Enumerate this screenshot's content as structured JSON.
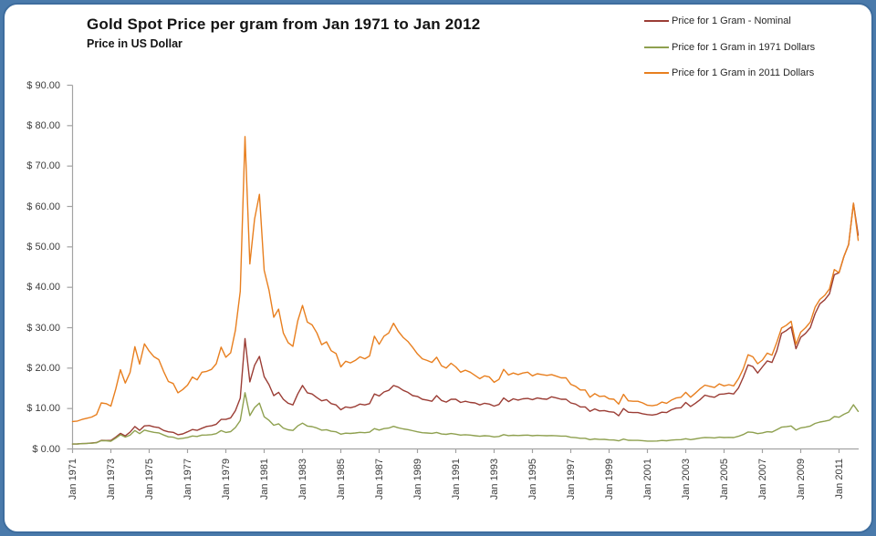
{
  "header": {
    "title": "Gold Spot Price per gram from Jan 1971 to Jan 2012",
    "subtitle": "Price in US Dollar"
  },
  "frame": {
    "background": "#ffffff",
    "border_color": "#3e6d9e",
    "page_color": "#4a7aab"
  },
  "axes": {
    "line_color": "#a3a3a3",
    "label_color": "#3d3d3d"
  },
  "chart_data": {
    "type": "line",
    "title": "Gold Spot Price per gram from Jan 1971 to Jan 2012",
    "subtitle": "Price in US Dollar",
    "xlabel": "",
    "ylabel": "Price in US Dollar",
    "grid": false,
    "legend_position": "top-right",
    "xlim": [
      1971,
      2012
    ],
    "ylim": [
      0,
      90
    ],
    "y_ticks": [
      0,
      10,
      20,
      30,
      40,
      50,
      60,
      70,
      80,
      90
    ],
    "y_tick_labels": [
      "$ 0.00",
      "$ 10.00",
      "$ 20.00",
      "$ 30.00",
      "$ 40.00",
      "$ 50.00",
      "$ 60.00",
      "$ 70.00",
      "$ 80.00",
      "$ 90.00"
    ],
    "x_tick_years": [
      1971,
      1973,
      1975,
      1977,
      1979,
      1981,
      1983,
      1985,
      1987,
      1989,
      1991,
      1993,
      1995,
      1997,
      1999,
      2001,
      2003,
      2005,
      2007,
      2009,
      2011
    ],
    "x_tick_labels": [
      "Jan 1971",
      "Jan 1973",
      "Jan 1975",
      "Jan 1977",
      "Jan 1979",
      "Jan 1981",
      "Jan 1983",
      "Jan 1985",
      "Jan 1987",
      "Jan 1989",
      "Jan 1991",
      "Jan 1993",
      "Jan 1995",
      "Jan 1997",
      "Jan 1999",
      "Jan 2001",
      "Jan 2003",
      "Jan 2005",
      "Jan 2007",
      "Jan 2009",
      "Jan 2011"
    ],
    "x_start_year": 1971.0,
    "x_step_years": 0.25,
    "sampling_note": "quarterly samples, Jan 1971 - Jan 2012",
    "series": [
      {
        "name": "Price for 1 Gram - Nominal",
        "color": "#9b3d35",
        "values": [
          1.22,
          1.25,
          1.32,
          1.37,
          1.47,
          1.58,
          2.11,
          2.09,
          2.09,
          2.91,
          3.86,
          3.22,
          4.15,
          5.54,
          4.6,
          5.7,
          5.79,
          5.45,
          5.28,
          4.59,
          4.23,
          4.11,
          3.53,
          3.73,
          4.25,
          4.8,
          4.61,
          5.11,
          5.57,
          5.72,
          6.11,
          7.31,
          7.31,
          7.69,
          9.48,
          12.59,
          27.3,
          16.6,
          20.7,
          22.9,
          17.9,
          15.9,
          13.2,
          14.0,
          12.3,
          11.3,
          10.9,
          13.6,
          15.7,
          13.9,
          13.6,
          12.7,
          11.9,
          12.2,
          11.2,
          10.9,
          9.7,
          10.4,
          10.2,
          10.5,
          11.1,
          10.9,
          11.2,
          13.6,
          13.1,
          14.1,
          14.5,
          15.7,
          15.3,
          14.5,
          14.0,
          13.2,
          13.0,
          12.3,
          12.1,
          11.8,
          13.2,
          12.0,
          11.6,
          12.3,
          12.3,
          11.5,
          11.8,
          11.5,
          11.4,
          10.9,
          11.3,
          11.1,
          10.6,
          11.0,
          12.6,
          11.7,
          12.4,
          12.1,
          12.4,
          12.5,
          12.2,
          12.6,
          12.4,
          12.3,
          12.9,
          12.6,
          12.3,
          12.3,
          11.4,
          11.1,
          10.4,
          10.4,
          9.3,
          9.9,
          9.4,
          9.5,
          9.2,
          9.1,
          8.2,
          10.0,
          9.1,
          9.0,
          9.0,
          8.7,
          8.5,
          8.4,
          8.6,
          9.1,
          9.0,
          9.7,
          10.1,
          10.2,
          11.5,
          10.5,
          11.3,
          12.2,
          13.3,
          13.0,
          12.8,
          13.5,
          13.6,
          13.8,
          13.6,
          15.1,
          17.7,
          20.8,
          20.4,
          18.8,
          20.3,
          21.8,
          21.4,
          24.3,
          28.6,
          29.3,
          30.2,
          24.8,
          27.6,
          28.6,
          30.0,
          33.5,
          35.9,
          36.9,
          38.4,
          43.1,
          43.6,
          47.6,
          50.6,
          60.8,
          52.9
        ]
      },
      {
        "name": "Price for 1 Gram in 1971 Dollars",
        "color": "#8ea04f",
        "values": [
          1.22,
          1.24,
          1.31,
          1.37,
          1.42,
          1.53,
          2.05,
          2.02,
          1.91,
          2.67,
          3.53,
          2.94,
          3.4,
          4.56,
          3.78,
          4.68,
          4.36,
          4.11,
          3.98,
          3.46,
          3.01,
          2.92,
          2.5,
          2.65,
          2.85,
          3.21,
          3.08,
          3.42,
          3.46,
          3.55,
          3.8,
          4.54,
          4.09,
          4.29,
          5.29,
          7.02,
          13.92,
          8.25,
          10.25,
          11.35,
          7.96,
          7.08,
          5.87,
          6.23,
          5.17,
          4.74,
          4.57,
          5.71,
          6.39,
          5.66,
          5.53,
          5.17,
          4.65,
          4.77,
          4.38,
          4.25,
          3.66,
          3.91,
          3.84,
          3.94,
          4.11,
          4.02,
          4.14,
          5.02,
          4.66,
          5.02,
          5.17,
          5.6,
          5.24,
          4.97,
          4.79,
          4.52,
          4.23,
          4.01,
          3.94,
          3.85,
          4.09,
          3.71,
          3.6,
          3.81,
          3.66,
          3.42,
          3.51,
          3.42,
          3.28,
          3.13,
          3.26,
          3.2,
          2.97,
          3.1,
          3.55,
          3.29,
          3.39,
          3.31,
          3.39,
          3.42,
          3.26,
          3.35,
          3.31,
          3.28,
          3.31,
          3.24,
          3.17,
          3.17,
          2.88,
          2.79,
          2.63,
          2.63,
          2.31,
          2.47,
          2.34,
          2.36,
          2.23,
          2.21,
          2.0,
          2.43,
          2.14,
          2.12,
          2.12,
          2.05,
          1.94,
          1.93,
          1.96,
          2.09,
          2.04,
          2.18,
          2.27,
          2.31,
          2.52,
          2.31,
          2.49,
          2.68,
          2.85,
          2.79,
          2.74,
          2.9,
          2.81,
          2.86,
          2.81,
          3.13,
          3.57,
          4.2,
          4.11,
          3.8,
          3.96,
          4.27,
          4.18,
          4.75,
          5.38,
          5.51,
          5.69,
          4.67,
          5.21,
          5.4,
          5.66,
          6.32,
          6.66,
          6.85,
          7.13,
          8.0,
          7.85,
          8.57,
          9.11,
          10.95,
          9.29
        ]
      },
      {
        "name": "Price for 1 Gram in 2011 Dollars",
        "color": "#e87f1f",
        "values": [
          6.8,
          6.9,
          7.3,
          7.6,
          7.9,
          8.5,
          11.4,
          11.2,
          10.6,
          14.8,
          19.6,
          16.3,
          18.9,
          25.3,
          21.0,
          26.0,
          24.2,
          22.8,
          22.1,
          19.2,
          16.7,
          16.2,
          13.9,
          14.7,
          15.8,
          17.8,
          17.1,
          19.0,
          19.2,
          19.7,
          21.1,
          25.2,
          22.7,
          23.8,
          29.4,
          39.0,
          77.3,
          45.8,
          56.9,
          63.0,
          44.2,
          39.3,
          32.6,
          34.6,
          28.7,
          26.3,
          25.4,
          31.7,
          35.5,
          31.4,
          30.7,
          28.7,
          25.8,
          26.5,
          24.3,
          23.6,
          20.3,
          21.7,
          21.3,
          21.9,
          22.8,
          22.3,
          23.0,
          27.9,
          25.9,
          27.9,
          28.7,
          31.1,
          29.1,
          27.6,
          26.6,
          25.1,
          23.5,
          22.3,
          21.9,
          21.4,
          22.7,
          20.6,
          20.0,
          21.2,
          20.3,
          19.0,
          19.5,
          19.0,
          18.2,
          17.4,
          18.1,
          17.8,
          16.5,
          17.2,
          19.7,
          18.3,
          18.8,
          18.4,
          18.8,
          19.0,
          18.1,
          18.6,
          18.4,
          18.2,
          18.4,
          18.0,
          17.6,
          17.6,
          16.0,
          15.5,
          14.6,
          14.6,
          12.8,
          13.7,
          13.0,
          13.1,
          12.4,
          12.3,
          11.1,
          13.5,
          11.9,
          11.8,
          11.8,
          11.4,
          10.8,
          10.7,
          10.9,
          11.6,
          11.3,
          12.1,
          12.6,
          12.8,
          14.0,
          12.8,
          13.8,
          14.9,
          15.8,
          15.5,
          15.2,
          16.1,
          15.6,
          15.9,
          15.6,
          17.4,
          19.8,
          23.3,
          22.8,
          21.1,
          22.0,
          23.7,
          23.2,
          26.4,
          29.9,
          30.6,
          31.6,
          25.9,
          28.9,
          30.0,
          31.4,
          35.1,
          37.0,
          38.0,
          39.6,
          44.4,
          43.6,
          47.6,
          50.6,
          60.8,
          51.6
        ]
      }
    ]
  }
}
